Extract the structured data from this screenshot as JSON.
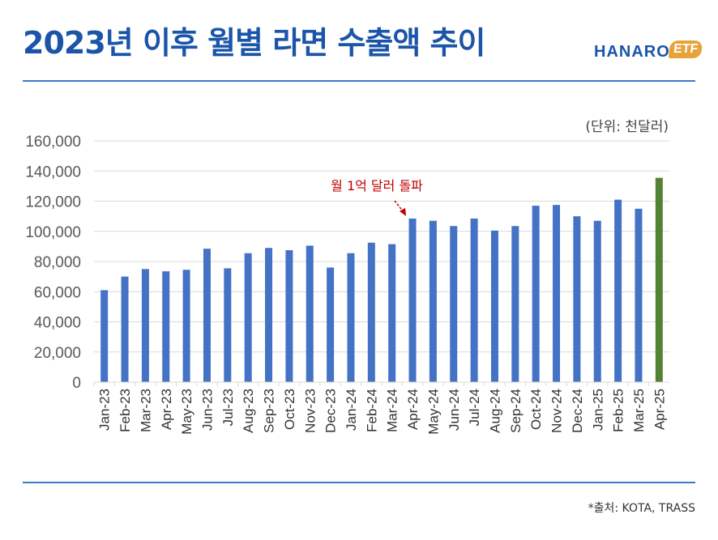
{
  "header": {
    "title": "2023년 이후 월별 라면 수출액 추이",
    "logo_text": "HANARO",
    "logo_badge": "ETF"
  },
  "footer": {
    "source": "*출처: KOTA, TRASS"
  },
  "colors": {
    "title": "#1a55a8",
    "rule": "#3a7cc6",
    "bar": "#4472c4",
    "bar_highlight": "#548235",
    "annotation": "#c00000",
    "logo_accent": "#e8a23a"
  },
  "chart_data": {
    "type": "bar",
    "unit_label": "(단위: 천달러)",
    "ylim": [
      0,
      160000
    ],
    "yticks": [
      0,
      20000,
      40000,
      60000,
      80000,
      100000,
      120000,
      140000,
      160000
    ],
    "ytick_labels": [
      "0",
      "20,000",
      "40,000",
      "60,000",
      "80,000",
      "100,000",
      "120,000",
      "140,000",
      "160,000"
    ],
    "grid": true,
    "categories": [
      "Jan-23",
      "Feb-23",
      "Mar-23",
      "Apr-23",
      "May-23",
      "Jun-23",
      "Jul-23",
      "Aug-23",
      "Sep-23",
      "Oct-23",
      "Nov-23",
      "Dec-23",
      "Jan-24",
      "Feb-24",
      "Mar-24",
      "Apr-24",
      "May-24",
      "Jun-24",
      "Jul-24",
      "Aug-24",
      "Sep-24",
      "Oct-24",
      "Nov-24",
      "Dec-24",
      "Jan-25",
      "Feb-25",
      "Mar-25",
      "Apr-25"
    ],
    "values": [
      61000,
      70000,
      75000,
      73500,
      74500,
      88500,
      75500,
      85500,
      89000,
      87500,
      90500,
      76000,
      85500,
      92500,
      91500,
      108500,
      107000,
      103500,
      108500,
      100500,
      103500,
      117000,
      117500,
      110000,
      107000,
      121000,
      115000,
      135500
    ],
    "highlight_index": 27,
    "annotation": {
      "text": "월 1억 달러 돌파",
      "target_category": "Apr-24"
    }
  }
}
